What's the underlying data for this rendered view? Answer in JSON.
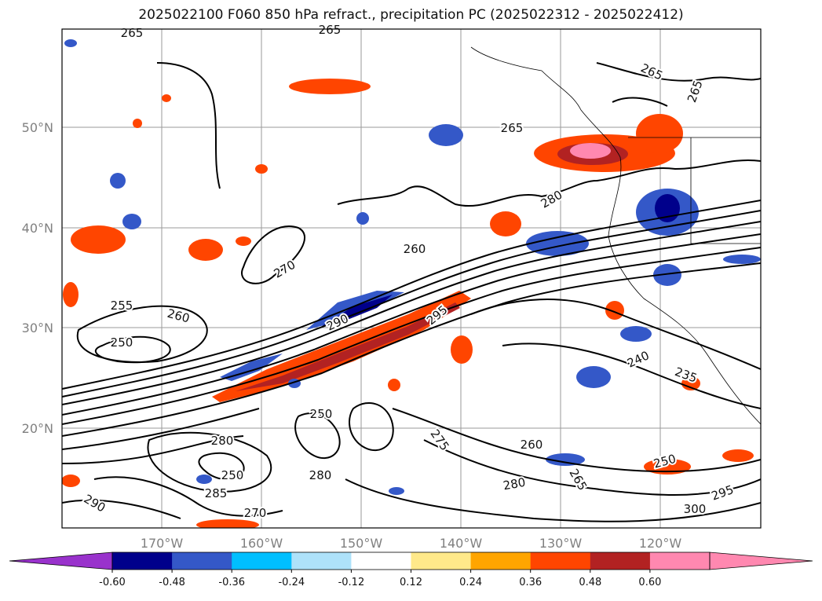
{
  "title": "2025022100 F060 850 hPa refract., precipitation PC (2025022312 - 2025022412)",
  "map": {
    "lat_labels": [
      "50°N",
      "40°N",
      "30°N",
      "20°N"
    ],
    "lon_labels": [
      "170°W",
      "160°W",
      "150°W",
      "140°W",
      "130°W",
      "120°W"
    ],
    "contour_labels": [
      "265",
      "265",
      "265",
      "265",
      "265",
      "270",
      "255",
      "260",
      "250",
      "260",
      "280",
      "290",
      "295",
      "240",
      "235",
      "260",
      "265",
      "250",
      "275",
      "250",
      "280",
      "280",
      "285",
      "290",
      "295",
      "300",
      "270",
      "280",
      "250"
    ]
  },
  "colorbar": {
    "ticks": [
      "-0.60",
      "-0.48",
      "-0.36",
      "-0.24",
      "-0.12",
      "0.12",
      "0.24",
      "0.36",
      "0.48",
      "0.60"
    ],
    "colors": {
      "below": "#9932cc",
      "bins": [
        "#00008b",
        "#3458c8",
        "#00bfff",
        "#aee2fa",
        "#ffffff",
        "#ffe98a",
        "#ffa500",
        "#ff4500",
        "#b22222",
        "#ff88b0"
      ],
      "above": "#ff88b0"
    }
  }
}
